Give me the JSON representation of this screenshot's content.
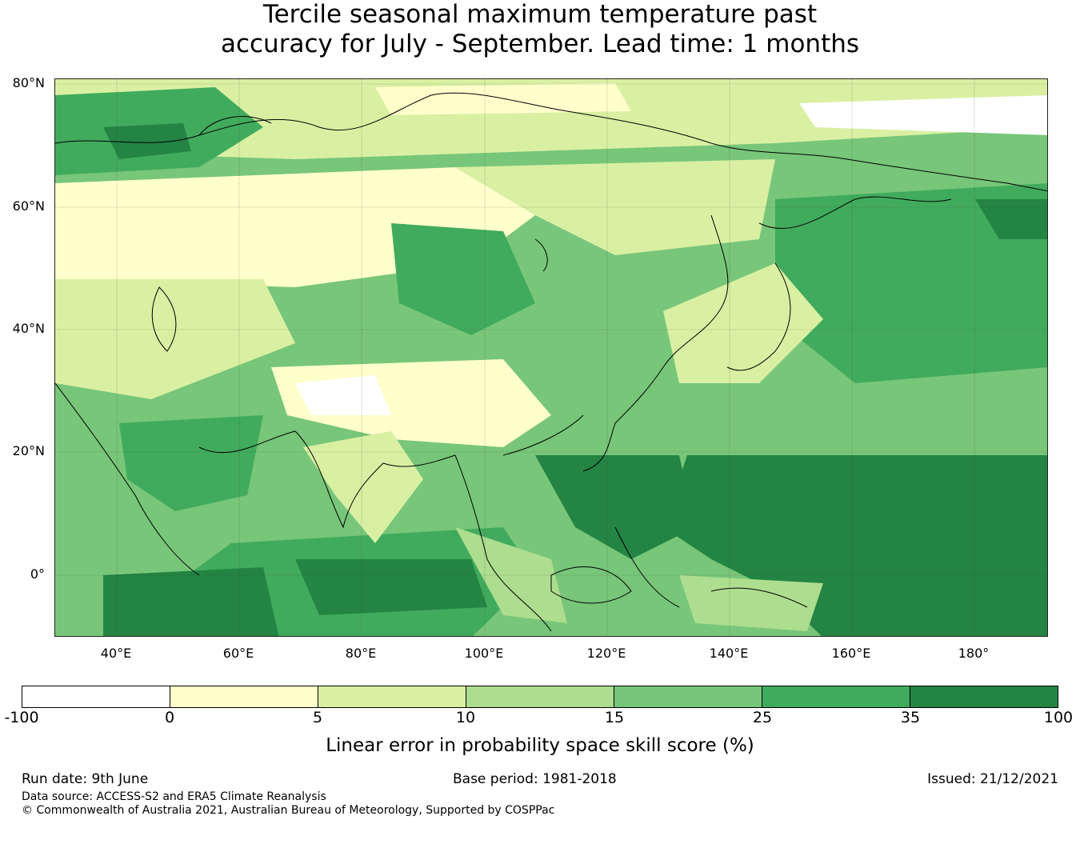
{
  "title_line1": "Tercile seasonal maximum temperature past",
  "title_line2": "accuracy for July - September. Lead time: 1 months",
  "map": {
    "lat_labels": [
      "80°N",
      "60°N",
      "40°N",
      "20°N",
      "0°"
    ],
    "lon_labels": [
      "40°E",
      "60°E",
      "80°E",
      "100°E",
      "120°E",
      "140°E",
      "160°E",
      "180°"
    ],
    "lat_range": [
      -10,
      81
    ],
    "lon_range": [
      30,
      192
    ],
    "region": "Asia and western Pacific",
    "coastline_color": "#000000"
  },
  "colorbar": {
    "ticks": [
      "-100",
      "0",
      "5",
      "10",
      "15",
      "25",
      "35",
      "100"
    ],
    "colors": [
      "#ffffff",
      "#ffffcc",
      "#d9f0a3",
      "#addd8e",
      "#78c679",
      "#41ab5d",
      "#238443"
    ],
    "label": "Linear error in probability space skill score (%)"
  },
  "footer": {
    "run_date": "Run date: 9th June",
    "base_period": "Base period: 1981-2018",
    "issued": "Issued: 21/12/2021",
    "data_source": "Data source: ACCESS-S2 and ERA5 Climate Reanalysis",
    "copyright": "© Commonwealth of Australia 2021, Australian Bureau of Meteorology, Supported by COSPPac"
  }
}
